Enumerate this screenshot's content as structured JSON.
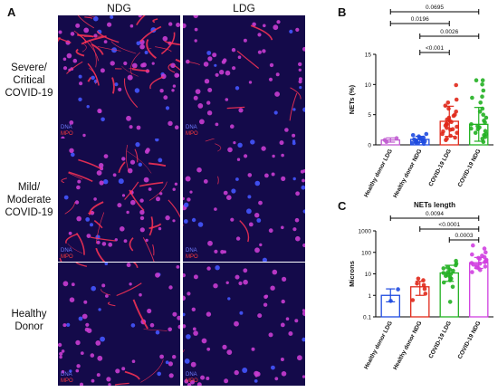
{
  "panel_a": {
    "letter": "A",
    "columns": [
      "NDG",
      "LDG"
    ],
    "rows": [
      {
        "label": "Severe/ Critical COVID-19",
        "intensity": "high"
      },
      {
        "label": "Mild/ Moderate COVID-19",
        "intensity": "medium"
      },
      {
        "label": "Healthy Donor",
        "intensity": "low"
      }
    ],
    "stain_labels": {
      "dna": "DNA",
      "mpo": "MPO"
    },
    "colors": {
      "background": "#140a4a",
      "cells": "#c83cd2",
      "nets": "#ff3355",
      "dna": "#4455ff"
    }
  },
  "chart_data": [
    {
      "type": "bar",
      "panel": "B",
      "title": "",
      "ylabel": "NETs (%)",
      "ylim": [
        0,
        15
      ],
      "yticks": [
        0,
        5,
        10,
        15
      ],
      "categories": [
        "Healthy donor LDG",
        "Healthy donor NDG",
        "COVID-19 LDG",
        "COVID-19 NDG"
      ],
      "colors": [
        "#c05ad0",
        "#1f4be0",
        "#e0281a",
        "#22b022"
      ],
      "means": [
        0.8,
        0.9,
        3.9,
        3.4
      ],
      "sd": [
        0.35,
        0.5,
        2.5,
        2.8
      ],
      "points": [
        [
          0.5,
          0.8,
          1.1
        ],
        [
          0.2,
          0.3,
          0.4,
          0.5,
          0.6,
          0.7,
          0.8,
          0.9,
          1.0,
          1.1,
          1.2,
          1.4,
          1.6,
          1.8,
          0.3,
          0.6
        ],
        [
          0.8,
          1.2,
          1.5,
          1.8,
          2.0,
          2.2,
          2.5,
          2.8,
          3.0,
          3.2,
          3.5,
          3.8,
          4.0,
          4.2,
          4.5,
          4.8,
          5.0,
          5.5,
          6.0,
          6.5,
          7.0,
          7.5,
          9.9,
          1.0,
          2.6,
          3.4
        ],
        [
          0.5,
          1.0,
          1.3,
          1.6,
          2.0,
          2.3,
          2.6,
          2.9,
          3.1,
          3.4,
          3.7,
          4.0,
          4.5,
          5.0,
          5.5,
          6.0,
          7.0,
          7.8,
          8.0,
          9.0,
          10.0,
          10.7,
          10.7,
          1.8,
          2.7
        ]
      ],
      "comparisons": [
        {
          "from": 0,
          "to": 3,
          "label": "0.0695"
        },
        {
          "from": 0,
          "to": 2,
          "label": "0.0196"
        },
        {
          "from": 1,
          "to": 3,
          "label": "0.0026"
        },
        {
          "from": 1,
          "to": 2,
          "label": "<0.001"
        }
      ]
    },
    {
      "type": "bar",
      "panel": "C",
      "title": "NETs length",
      "ylabel": "Microns",
      "yscale": "log",
      "ylim": [
        0.1,
        1000
      ],
      "yticks": [
        0.1,
        1,
        10,
        100,
        1000
      ],
      "ytick_labels": [
        "0.1",
        "1",
        "10",
        "100",
        "1000"
      ],
      "categories": [
        "Healthy donor LDG",
        "Healthy donor NDG",
        "COVID-19 LDG",
        "COVID-19 NDG"
      ],
      "colors": [
        "#1f4be0",
        "#e0281a",
        "#22b022",
        "#d040e0"
      ],
      "means": [
        1.0,
        2.5,
        11,
        33
      ],
      "sd_range": [
        [
          0.5,
          2.0
        ],
        [
          1.0,
          4.5
        ],
        [
          4.5,
          25
        ],
        [
          18,
          58
        ]
      ],
      "points": [
        [
          0.55,
          1.9
        ],
        [
          0.6,
          1.2,
          2.0,
          3.0,
          3.5,
          5.0,
          6.0
        ],
        [
          0.5,
          2.5,
          4,
          5,
          6,
          7,
          8,
          9,
          10,
          11,
          12,
          14,
          16,
          18,
          20,
          25,
          30,
          40
        ],
        [
          12,
          15,
          18,
          20,
          22,
          25,
          27,
          30,
          32,
          35,
          38,
          40,
          45,
          50,
          55,
          60,
          70,
          80,
          100,
          150,
          210
        ]
      ],
      "comparisons": [
        {
          "from": 0,
          "to": 3,
          "label": "0.0094"
        },
        {
          "from": 1,
          "to": 3,
          "label": "<0.0001"
        },
        {
          "from": 2,
          "to": 3,
          "label": "0.0003"
        }
      ]
    }
  ]
}
